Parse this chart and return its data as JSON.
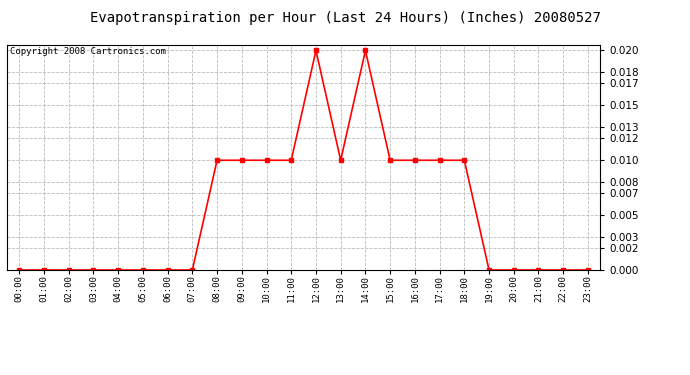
{
  "title": "Evapotranspiration per Hour (Last 24 Hours) (Inches) 20080527",
  "copyright": "Copyright 2008 Cartronics.com",
  "hours": [
    "00:00",
    "01:00",
    "02:00",
    "03:00",
    "04:00",
    "05:00",
    "06:00",
    "07:00",
    "08:00",
    "09:00",
    "10:00",
    "11:00",
    "12:00",
    "13:00",
    "14:00",
    "15:00",
    "16:00",
    "17:00",
    "18:00",
    "19:00",
    "20:00",
    "21:00",
    "22:00",
    "23:00"
  ],
  "values": [
    0.0,
    0.0,
    0.0,
    0.0,
    0.0,
    0.0,
    0.0,
    0.0,
    0.01,
    0.01,
    0.01,
    0.01,
    0.02,
    0.01,
    0.02,
    0.01,
    0.01,
    0.01,
    0.01,
    0.0,
    0.0,
    0.0,
    0.0,
    0.0
  ],
  "line_color": "#ff0000",
  "marker": "s",
  "marker_size": 3,
  "line_width": 1.2,
  "bg_color": "#ffffff",
  "grid_color": "#bbbbbb",
  "ylim": [
    0.0,
    0.0205
  ],
  "yticks": [
    0.0,
    0.002,
    0.003,
    0.005,
    0.007,
    0.008,
    0.01,
    0.012,
    0.013,
    0.015,
    0.017,
    0.018,
    0.02
  ],
  "title_fontsize": 10,
  "copyright_fontsize": 6.5,
  "xtick_fontsize": 6.5,
  "ytick_fontsize": 7.5
}
